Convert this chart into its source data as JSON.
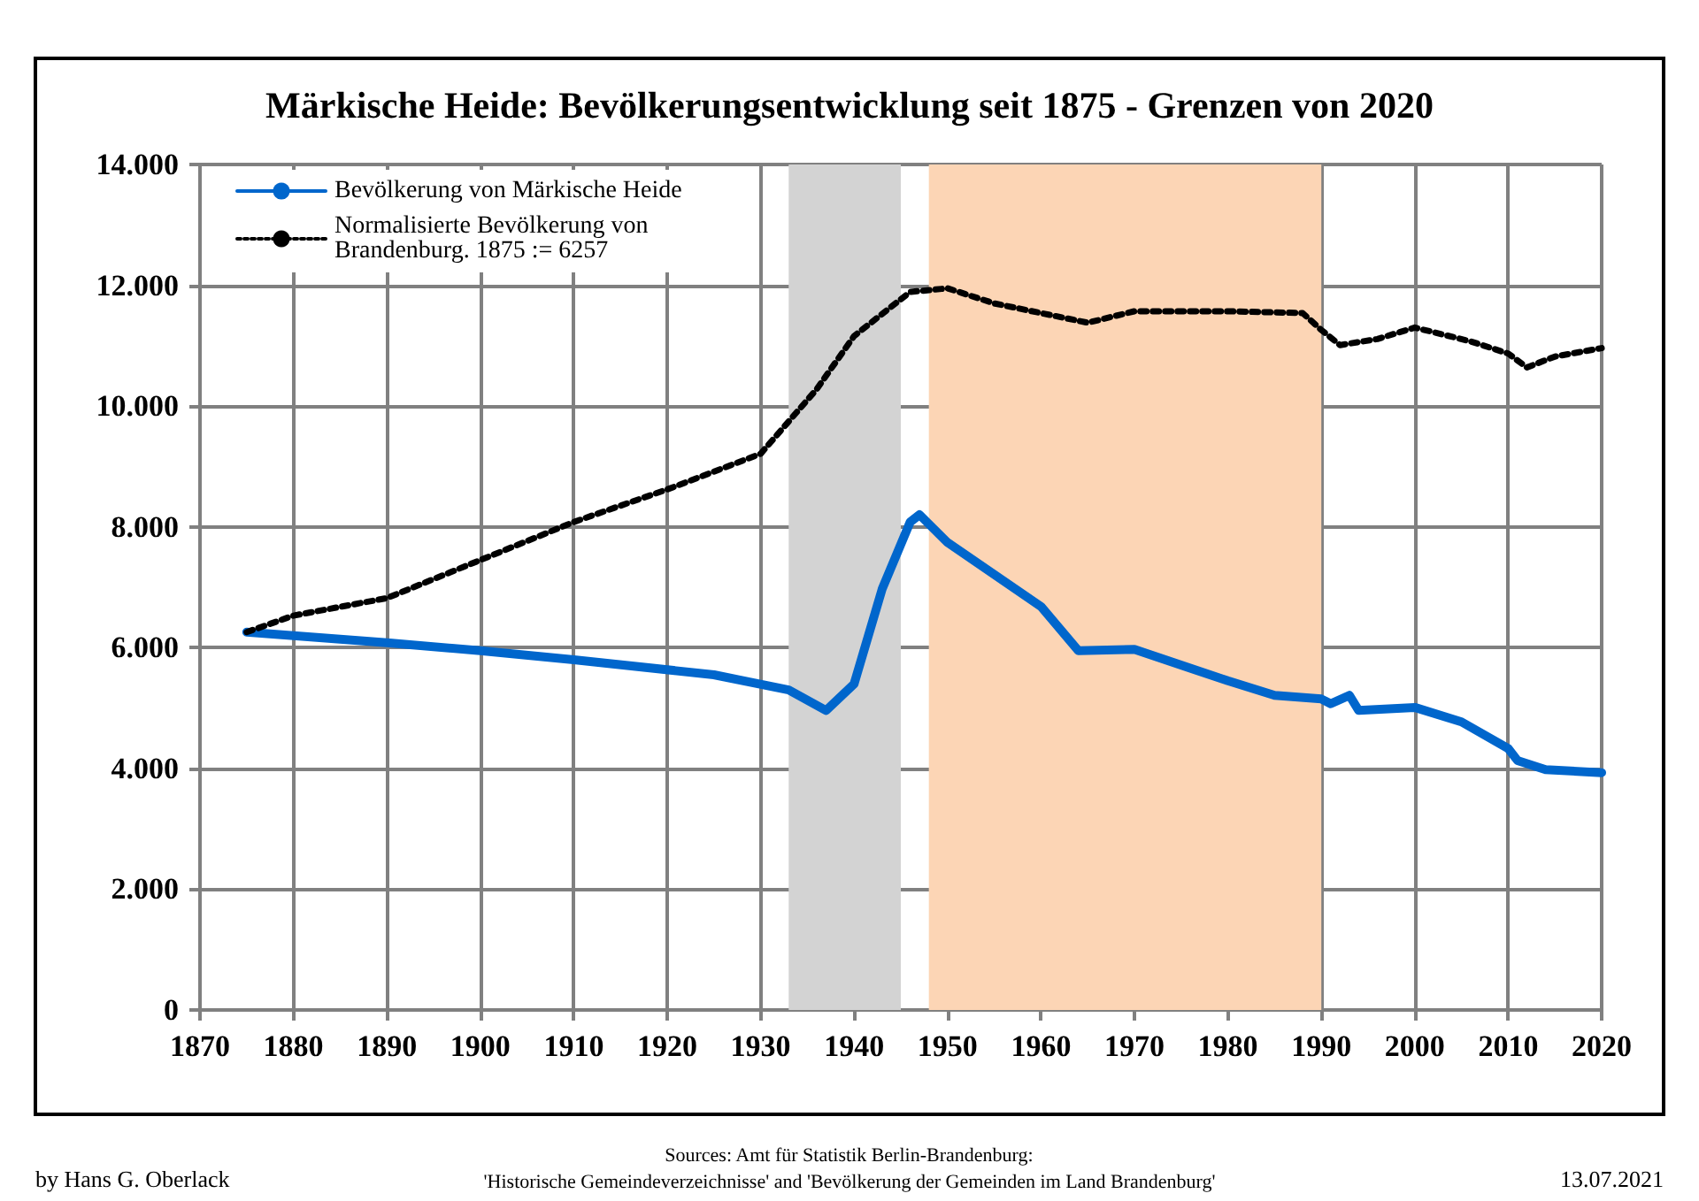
{
  "chart_data": {
    "type": "line",
    "title": "Märkische Heide: Bevölkerungsentwicklung seit 1875 - Grenzen von 2020",
    "series": [
      {
        "name": "Bevölkerung von Märkische Heide",
        "color": "#0066cc",
        "line_style": "solid",
        "x": [
          1875,
          1890,
          1900,
          1910,
          1925,
          1933,
          1937,
          1940,
          1943,
          1946,
          1947,
          1950,
          1960,
          1964,
          1970,
          1980,
          1985,
          1990,
          1991,
          1993,
          1994,
          2000,
          2005,
          2010,
          2011,
          2014,
          2020
        ],
        "values": [
          6257,
          6080,
          5950,
          5800,
          5550,
          5300,
          4960,
          5400,
          6970,
          8080,
          8200,
          7740,
          6680,
          5950,
          5970,
          5450,
          5210,
          5150,
          5070,
          5210,
          4960,
          5010,
          4770,
          4330,
          4130,
          3980,
          3930
        ]
      },
      {
        "name": "Normalisierte Bevölkerung von Brandenburg. 1875 := 6257",
        "color": "#000000",
        "line_style": "dotted",
        "x": [
          1875,
          1880,
          1890,
          1900,
          1910,
          1920,
          1930,
          1936,
          1940,
          1946,
          1950,
          1955,
          1965,
          1970,
          1980,
          1988,
          1990,
          1992,
          1996,
          2000,
          2006,
          2010,
          2012,
          2015,
          2020
        ],
        "values": [
          6257,
          6530,
          6820,
          7450,
          8080,
          8620,
          9210,
          10280,
          11160,
          11890,
          11950,
          11700,
          11380,
          11570,
          11570,
          11540,
          11260,
          11010,
          11110,
          11300,
          11070,
          10870,
          10640,
          10820,
          10960
        ]
      }
    ],
    "xlim": [
      1870,
      2020
    ],
    "xticks": [
      1870,
      1880,
      1890,
      1900,
      1910,
      1920,
      1930,
      1940,
      1950,
      1960,
      1970,
      1980,
      1990,
      2000,
      2010,
      2020
    ],
    "ylim": [
      0,
      14000
    ],
    "yticks": [
      {
        "value": 0,
        "label": "0"
      },
      {
        "value": 2000,
        "label": "2.000"
      },
      {
        "value": 4000,
        "label": "4.000"
      },
      {
        "value": 6000,
        "label": "6.000"
      },
      {
        "value": 8000,
        "label": "8.000"
      },
      {
        "value": 10000,
        "label": "10.000"
      },
      {
        "value": 12000,
        "label": "12.000"
      },
      {
        "value": 14000,
        "label": "14.000"
      }
    ],
    "bands": [
      {
        "axis": "x",
        "from": 1933,
        "to": 1945,
        "color": "#d3d3d3"
      },
      {
        "axis": "x",
        "from": 1948,
        "to": 1990,
        "color": "#fcd5b5"
      }
    ],
    "grid": true,
    "legend": "top left",
    "marker": "none",
    "annotations": [
      "by Hans G. Oberlack",
      "Sources: Amt für Statistik Berlin-Brandenburg:",
      "'Historische Gemeindeverzeichnisse' and 'Bevölkerung der Gemeinden im Land Brandenburg'",
      "13.07.2021"
    ]
  }
}
